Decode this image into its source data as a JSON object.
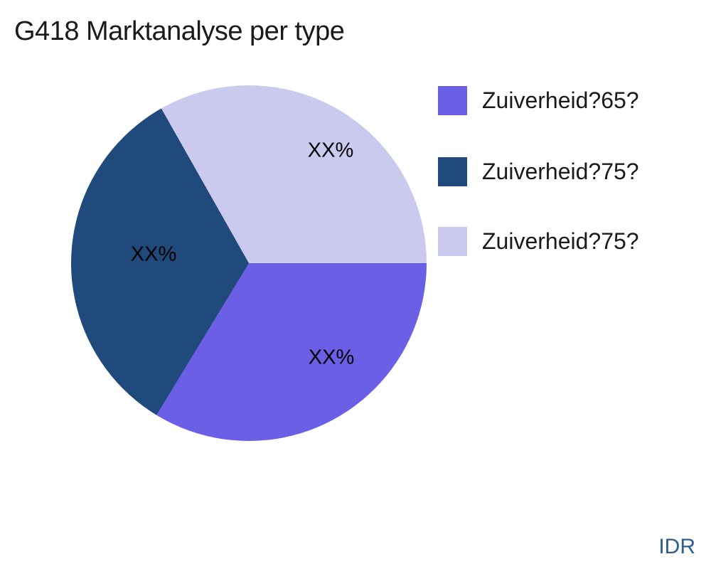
{
  "title": "G418 Marktanalyse per type",
  "watermark": "IDR",
  "colors": {
    "background": "#ffffff",
    "title_text": "#1a1a1a",
    "slice_label_text": "#000000",
    "watermark_text": "#2F5D8C"
  },
  "chart_data": {
    "type": "pie",
    "title": "G418 Marktanalyse per type",
    "start_angle_deg": 0,
    "direction": "clockwise",
    "legend_position": "right",
    "slices": [
      {
        "label": "Zuiverheid?65?",
        "display_value": "XX%",
        "value_pct": 33.7,
        "color": "#6B5FE6"
      },
      {
        "label": "Zuiverheid?75?",
        "display_value": "XX%",
        "value_pct": 33.1,
        "color": "#1F4A7B"
      },
      {
        "label": "Zuiverheid?75?",
        "display_value": "XX%",
        "value_pct": 33.2,
        "color": "#C9CAEE"
      }
    ]
  }
}
